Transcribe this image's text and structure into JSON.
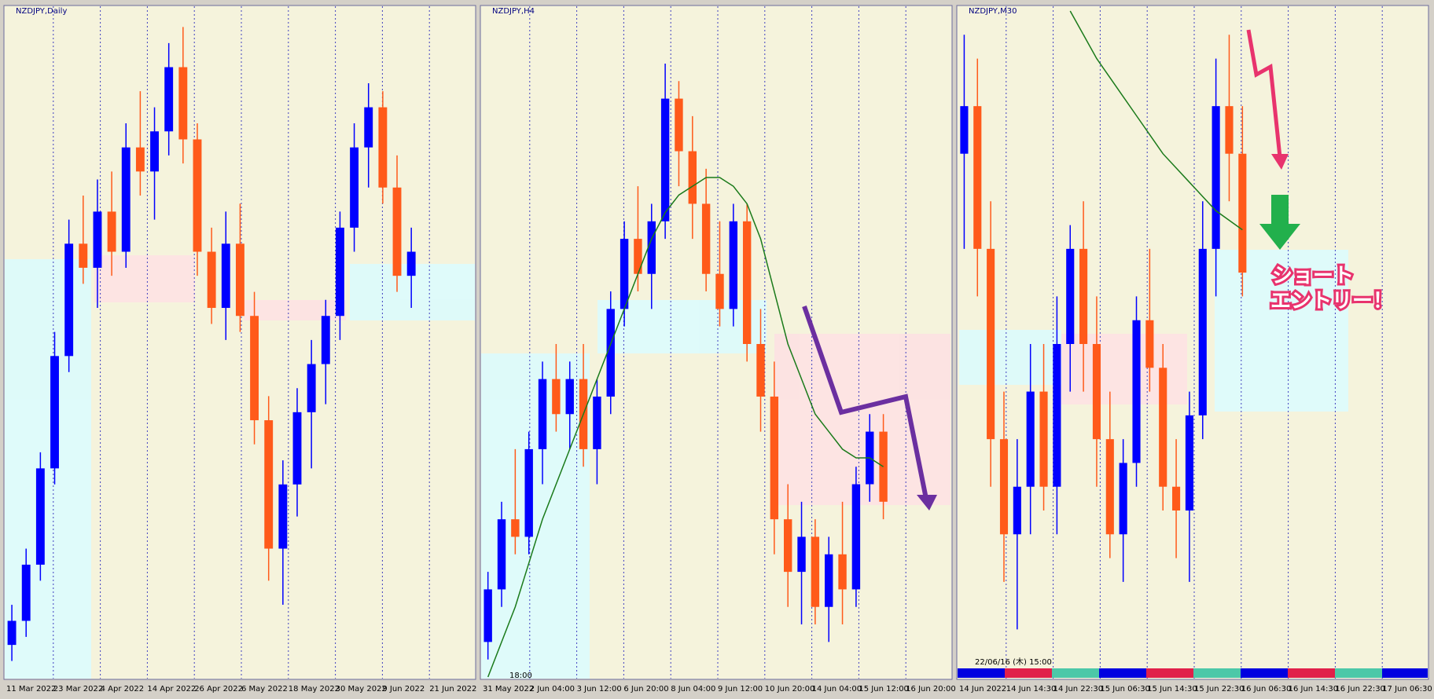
{
  "chart_data": [
    {
      "type": "candlestick",
      "title": "NZDJPY,Daily",
      "up_color": "#0000ff",
      "down_color": "#ff5a1a",
      "ylim": [
        80,
        88.3
      ],
      "categories": [
        "11 Mar 2022",
        "23 Mar 2022",
        "4 Apr 2022",
        "14 Apr 2022",
        "26 Apr 2022",
        "6 May 2022",
        "18 May 2022",
        "30 May 2022",
        "9 Jun 2022",
        "21 Jun 2022"
      ],
      "candles": [
        [
          80.4,
          80.9,
          80.2,
          80.7
        ],
        [
          80.7,
          81.6,
          80.5,
          81.4
        ],
        [
          81.4,
          82.8,
          81.2,
          82.6
        ],
        [
          82.6,
          84.3,
          82.4,
          84.0
        ],
        [
          84.0,
          85.7,
          83.8,
          85.4
        ],
        [
          85.4,
          86.0,
          84.9,
          85.1
        ],
        [
          85.1,
          86.2,
          84.6,
          85.8
        ],
        [
          85.8,
          86.3,
          85.0,
          85.3
        ],
        [
          85.3,
          86.9,
          85.1,
          86.6
        ],
        [
          86.6,
          87.3,
          86.0,
          86.3
        ],
        [
          86.3,
          87.1,
          85.7,
          86.8
        ],
        [
          86.8,
          87.9,
          86.5,
          87.6
        ],
        [
          87.6,
          88.1,
          86.4,
          86.7
        ],
        [
          86.7,
          86.9,
          85.0,
          85.3
        ],
        [
          85.3,
          85.6,
          84.4,
          84.6
        ],
        [
          84.6,
          85.8,
          84.2,
          85.4
        ],
        [
          85.4,
          85.9,
          84.3,
          84.5
        ],
        [
          84.5,
          84.8,
          82.9,
          83.2
        ],
        [
          83.2,
          83.5,
          81.2,
          81.6
        ],
        [
          81.6,
          82.7,
          80.9,
          82.4
        ],
        [
          82.4,
          83.6,
          82.0,
          83.3
        ],
        [
          83.3,
          84.2,
          82.6,
          83.9
        ],
        [
          83.9,
          84.7,
          83.4,
          84.5
        ],
        [
          84.5,
          85.8,
          84.2,
          85.6
        ],
        [
          85.6,
          86.9,
          85.3,
          86.6
        ],
        [
          86.6,
          87.4,
          86.1,
          87.1
        ],
        [
          87.1,
          87.3,
          85.9,
          86.1
        ],
        [
          86.1,
          86.5,
          84.8,
          85.0
        ],
        [
          85.0,
          85.6,
          84.6,
          85.3
        ]
      ]
    },
    {
      "type": "candlestick",
      "title": "NZDJPY,H4",
      "up_color": "#0000ff",
      "down_color": "#ff5a1a",
      "ylim": [
        84.2,
        88.0
      ],
      "categories": [
        "31 May 2022",
        "2 Jun 04:00",
        "3 Jun 12:00",
        "6 Jun 20:00",
        "8 Jun 04:00",
        "9 Jun 12:00",
        "10 Jun 20:00",
        "14 Jun 04:00",
        "15 Jun 12:00",
        "16 Jun 20:00"
      ],
      "annotation": "18:00",
      "candles": [
        [
          84.4,
          84.8,
          84.3,
          84.7
        ],
        [
          84.7,
          85.2,
          84.6,
          85.1
        ],
        [
          85.1,
          85.5,
          84.9,
          85.0
        ],
        [
          85.0,
          85.6,
          84.9,
          85.5
        ],
        [
          85.5,
          86.0,
          85.3,
          85.9
        ],
        [
          85.9,
          86.1,
          85.6,
          85.7
        ],
        [
          85.7,
          86.0,
          85.5,
          85.9
        ],
        [
          85.9,
          86.1,
          85.4,
          85.5
        ],
        [
          85.5,
          85.9,
          85.3,
          85.8
        ],
        [
          85.8,
          86.4,
          85.7,
          86.3
        ],
        [
          86.3,
          86.8,
          86.2,
          86.7
        ],
        [
          86.7,
          87.0,
          86.4,
          86.5
        ],
        [
          86.5,
          86.9,
          86.3,
          86.8
        ],
        [
          86.8,
          87.7,
          86.7,
          87.5
        ],
        [
          87.5,
          87.6,
          87.0,
          87.2
        ],
        [
          87.2,
          87.4,
          86.7,
          86.9
        ],
        [
          86.9,
          87.1,
          86.4,
          86.5
        ],
        [
          86.5,
          86.8,
          86.2,
          86.3
        ],
        [
          86.3,
          86.9,
          86.2,
          86.8
        ],
        [
          86.8,
          86.9,
          86.0,
          86.1
        ],
        [
          86.1,
          86.3,
          85.6,
          85.8
        ],
        [
          85.8,
          86.0,
          84.9,
          85.1
        ],
        [
          85.1,
          85.3,
          84.6,
          84.8
        ],
        [
          84.8,
          85.2,
          84.5,
          85.0
        ],
        [
          85.0,
          85.1,
          84.5,
          84.6
        ],
        [
          84.6,
          85.0,
          84.4,
          84.9
        ],
        [
          84.9,
          85.2,
          84.5,
          84.7
        ],
        [
          84.7,
          85.4,
          84.6,
          85.3
        ],
        [
          85.3,
          85.7,
          85.2,
          85.6
        ],
        [
          85.6,
          85.7,
          85.1,
          85.2
        ]
      ],
      "ma": {
        "color": "#1a7a1a",
        "values": [
          84.2,
          84.4,
          84.6,
          84.85,
          85.1,
          85.3,
          85.5,
          85.7,
          85.9,
          86.1,
          86.3,
          86.5,
          86.7,
          86.85,
          86.95,
          87.0,
          87.05,
          87.05,
          87.0,
          86.9,
          86.7,
          86.4,
          86.1,
          85.9,
          85.7,
          85.6,
          85.5,
          85.45,
          85.45,
          85.4
        ]
      }
    },
    {
      "type": "candlestick",
      "title": "NZDJPY,M30",
      "up_color": "#0000ff",
      "down_color": "#ff5a1a",
      "ylim": [
        84.6,
        86.0
      ],
      "categories": [
        "14 Jun 2022",
        "14 Jun 14:30",
        "14 Jun 22:30",
        "15 Jun 06:30",
        "15 Jun 14:30",
        "15 Jun 22:30",
        "16 Jun 06:30",
        "16 Jun 14:30",
        "16 Jun 22:30",
        "17 Jun 06:30"
      ],
      "annotation": "22/06/16 (木) 15:00",
      "entry_text": [
        "ショート",
        "エントリー！"
      ],
      "candles": [
        [
          85.7,
          85.95,
          85.5,
          85.8
        ],
        [
          85.8,
          85.9,
          85.4,
          85.5
        ],
        [
          85.5,
          85.6,
          85.0,
          85.1
        ],
        [
          85.1,
          85.2,
          84.8,
          84.9
        ],
        [
          84.9,
          85.1,
          84.7,
          85.0
        ],
        [
          85.0,
          85.3,
          84.9,
          85.2
        ],
        [
          85.2,
          85.3,
          84.95,
          85.0
        ],
        [
          85.0,
          85.4,
          84.9,
          85.3
        ],
        [
          85.3,
          85.55,
          85.2,
          85.5
        ],
        [
          85.5,
          85.6,
          85.2,
          85.3
        ],
        [
          85.3,
          85.4,
          85.0,
          85.1
        ],
        [
          85.1,
          85.2,
          84.85,
          84.9
        ],
        [
          84.9,
          85.1,
          84.8,
          85.05
        ],
        [
          85.05,
          85.4,
          85.0,
          85.35
        ],
        [
          85.35,
          85.5,
          85.2,
          85.25
        ],
        [
          85.25,
          85.3,
          84.95,
          85.0
        ],
        [
          85.0,
          85.1,
          84.85,
          84.95
        ],
        [
          84.95,
          85.2,
          84.8,
          85.15
        ],
        [
          85.15,
          85.6,
          85.1,
          85.5
        ],
        [
          85.5,
          85.9,
          85.4,
          85.8
        ],
        [
          85.8,
          85.95,
          85.6,
          85.7
        ],
        [
          85.7,
          85.8,
          85.4,
          85.45
        ]
      ],
      "ma": {
        "color": "#1a7a1a",
        "values": [
          null,
          null,
          null,
          null,
          null,
          null,
          null,
          null,
          86.0,
          85.95,
          85.9,
          85.86,
          85.82,
          85.78,
          85.74,
          85.7,
          85.67,
          85.64,
          85.61,
          85.58,
          85.56,
          85.54
        ]
      }
    }
  ]
}
